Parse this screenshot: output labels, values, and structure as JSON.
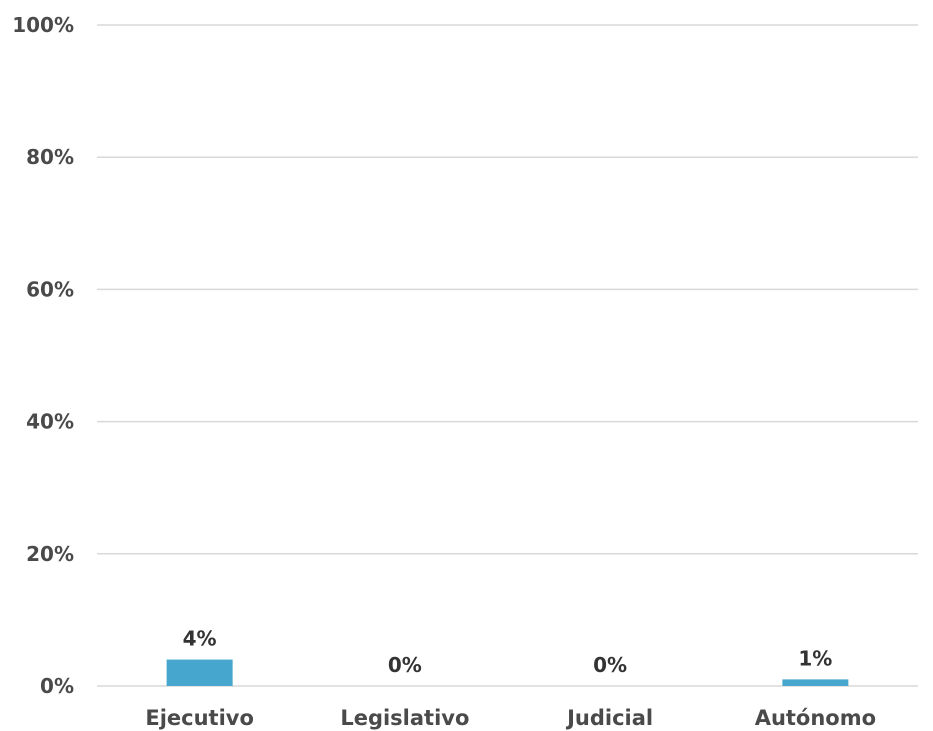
{
  "chart_data": {
    "type": "bar",
    "title": "",
    "xlabel": "",
    "ylabel": "",
    "categories": [
      "Ejecutivo",
      "Legislativo",
      "Judicial",
      "Autónomo"
    ],
    "values": [
      4,
      0,
      0,
      1
    ],
    "data_labels": [
      "4%",
      "0%",
      "0%",
      "1%"
    ],
    "ylim": [
      0,
      100
    ],
    "yticks": [
      0,
      20,
      40,
      60,
      80,
      100
    ],
    "ytick_labels": [
      "0%",
      "20%",
      "40%",
      "60%",
      "80%",
      "100%"
    ],
    "grid": true,
    "legend": "none",
    "colors": {
      "bar": "#46a6cd",
      "grid": "#d9d9d9",
      "text": "#4a4a4a"
    }
  }
}
